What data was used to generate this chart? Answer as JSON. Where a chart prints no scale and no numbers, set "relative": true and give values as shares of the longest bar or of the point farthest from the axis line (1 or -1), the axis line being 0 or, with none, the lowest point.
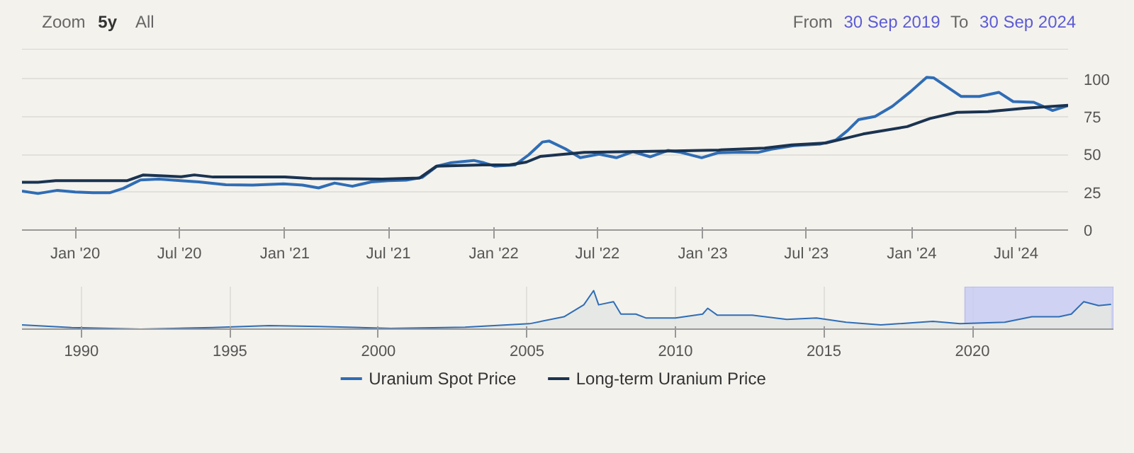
{
  "chart_data": [
    {
      "type": "line",
      "annotations": [
        "Zoom",
        "5y",
        "All",
        "From",
        "30 Sep 2019",
        "To",
        "30 Sep 2024"
      ],
      "xlim": [
        "2019-09-30",
        "2024-09-30"
      ],
      "ylim": [
        0,
        120
      ],
      "yticks": [
        0,
        25,
        50,
        75,
        100
      ],
      "xticks": [
        {
          "value": "2020-01-01",
          "label": "Jan '20"
        },
        {
          "value": "2020-07-01",
          "label": "Jul '20"
        },
        {
          "value": "2021-01-01",
          "label": "Jan '21"
        },
        {
          "value": "2021-07-01",
          "label": "Jul '21"
        },
        {
          "value": "2022-01-01",
          "label": "Jan '22"
        },
        {
          "value": "2022-07-01",
          "label": "Jul '22"
        },
        {
          "value": "2023-01-01",
          "label": "Jan '23"
        },
        {
          "value": "2023-07-01",
          "label": "Jul '23"
        },
        {
          "value": "2024-01-01",
          "label": "Jan '24"
        },
        {
          "value": "2024-07-01",
          "label": "Jul '24"
        }
      ],
      "grid": "y",
      "legend": "bottom",
      "series": [
        {
          "name": "Uranium Spot Price",
          "color": "#2f6db5",
          "x": [
            "2019-09-30",
            "2019-10-28",
            "2019-12-01",
            "2020-01-01",
            "2020-02-01",
            "2020-03-01",
            "2020-03-25",
            "2020-04-24",
            "2020-05-26",
            "2020-07-03",
            "2020-08-04",
            "2020-09-20",
            "2020-11-06",
            "2020-12-30",
            "2021-02-01",
            "2021-03-01",
            "2021-03-29",
            "2021-04-29",
            "2021-06-01",
            "2021-07-01",
            "2021-08-01",
            "2021-08-29",
            "2021-09-24",
            "2021-10-17",
            "2021-11-27",
            "2021-12-15",
            "2022-01-03",
            "2022-02-07",
            "2022-03-03",
            "2022-03-27",
            "2022-04-08",
            "2022-05-06",
            "2022-06-01",
            "2022-07-04",
            "2022-08-03",
            "2022-09-01",
            "2022-10-01",
            "2022-11-01",
            "2022-11-24",
            "2022-12-30",
            "2023-01-27",
            "2023-03-07",
            "2023-04-07",
            "2023-05-01",
            "2023-06-09",
            "2023-07-26",
            "2023-08-22",
            "2023-09-11",
            "2023-09-30",
            "2023-10-29",
            "2023-11-28",
            "2023-12-30",
            "2024-01-27",
            "2024-02-08",
            "2024-03-27",
            "2024-04-28",
            "2024-06-01",
            "2024-06-26",
            "2024-08-01",
            "2024-09-03",
            "2024-09-30"
          ],
          "values": [
            25.8,
            24.2,
            26.3,
            25.2,
            24.7,
            24.7,
            27.6,
            33.2,
            33.7,
            32.7,
            31.9,
            30,
            29.8,
            30.6,
            29.8,
            27.9,
            31.1,
            29,
            31.9,
            32.7,
            33,
            34.9,
            42.3,
            44.5,
            46.1,
            44.5,
            42.3,
            43.1,
            49.8,
            58.3,
            58.9,
            53.8,
            47.9,
            50.3,
            47.9,
            51.9,
            48.5,
            52.7,
            51.4,
            47.9,
            51.1,
            51.6,
            51.4,
            53.5,
            55.9,
            57,
            59.7,
            65.9,
            73.1,
            75.2,
            81.9,
            91.7,
            101.1,
            100.8,
            88.5,
            88.5,
            91.2,
            85.1,
            84.6,
            79.2,
            82.4
          ]
        },
        {
          "name": "Long-term Uranium Price",
          "color": "#1a3350",
          "x": [
            "2019-09-30",
            "2019-10-28",
            "2019-11-28",
            "2020-04-01",
            "2020-04-29",
            "2020-06-03",
            "2020-07-04",
            "2020-07-27",
            "2020-08-29",
            "2021-01-01",
            "2021-02-17",
            "2021-06-21",
            "2021-08-24",
            "2021-09-23",
            "2021-12-12",
            "2022-01-28",
            "2022-02-27",
            "2022-03-23",
            "2022-06-08",
            "2022-11-13",
            "2023-01-29",
            "2023-04-19",
            "2023-06-05",
            "2023-08-05",
            "2023-10-08",
            "2023-12-24",
            "2024-02-02",
            "2024-03-20",
            "2024-05-13",
            "2024-07-15",
            "2024-09-30"
          ],
          "values": [
            31.6,
            31.6,
            32.7,
            32.7,
            36.5,
            35.9,
            35.3,
            36.5,
            35.1,
            35.1,
            34.1,
            33.8,
            34.4,
            42.3,
            43.1,
            43.1,
            45,
            48.7,
            51.4,
            52.4,
            53,
            54.3,
            56.4,
            57.7,
            63.6,
            68.5,
            73.9,
            77.9,
            78.4,
            80.6,
            82.6
          ]
        }
      ]
    },
    {
      "type": "area",
      "relative": true,
      "grid": "x",
      "xlim": [
        "1988-01-01",
        "2024-09-30"
      ],
      "xticks": [
        {
          "value": "1990-01-01",
          "label": "1990"
        },
        {
          "value": "1995-01-01",
          "label": "1995"
        },
        {
          "value": "2000-01-01",
          "label": "2000"
        },
        {
          "value": "2005-01-01",
          "label": "2005"
        },
        {
          "value": "2010-01-01",
          "label": "2010"
        },
        {
          "value": "2015-01-01",
          "label": "2015"
        },
        {
          "value": "2020-01-01",
          "label": "2020"
        }
      ],
      "bands": [
        {
          "axis": "x",
          "from": "2019-09-30",
          "to": "2024-09-30",
          "color": "#c5c9f2"
        }
      ],
      "series": [
        {
          "color": "#2f6db5",
          "x": [
            "1988-01",
            "1989-09",
            "1992-01",
            "1994-06",
            "1996-05",
            "1998-01",
            "2000-06",
            "2002-12",
            "2005-02",
            "2006-04",
            "2006-12",
            "2007-04",
            "2007-06",
            "2007-12",
            "2008-03",
            "2008-09",
            "2009-01",
            "2010-01",
            "2010-12",
            "2011-02",
            "2011-06",
            "2012-08",
            "2013-10",
            "2014-10",
            "2015-10",
            "2016-12",
            "2018-09",
            "2019-08",
            "2021-02",
            "2022-01",
            "2022-12",
            "2023-05",
            "2023-10",
            "2024-04",
            "2024-09"
          ],
          "values": [
            0.11,
            0.04,
            0,
            0.04,
            0.09,
            0.07,
            0.02,
            0.05,
            0.14,
            0.32,
            0.63,
            1,
            0.63,
            0.71,
            0.39,
            0.39,
            0.29,
            0.29,
            0.39,
            0.54,
            0.36,
            0.36,
            0.25,
            0.29,
            0.18,
            0.11,
            0.2,
            0.14,
            0.18,
            0.32,
            0.32,
            0.39,
            0.71,
            0.61,
            0.64
          ]
        }
      ]
    }
  ]
}
